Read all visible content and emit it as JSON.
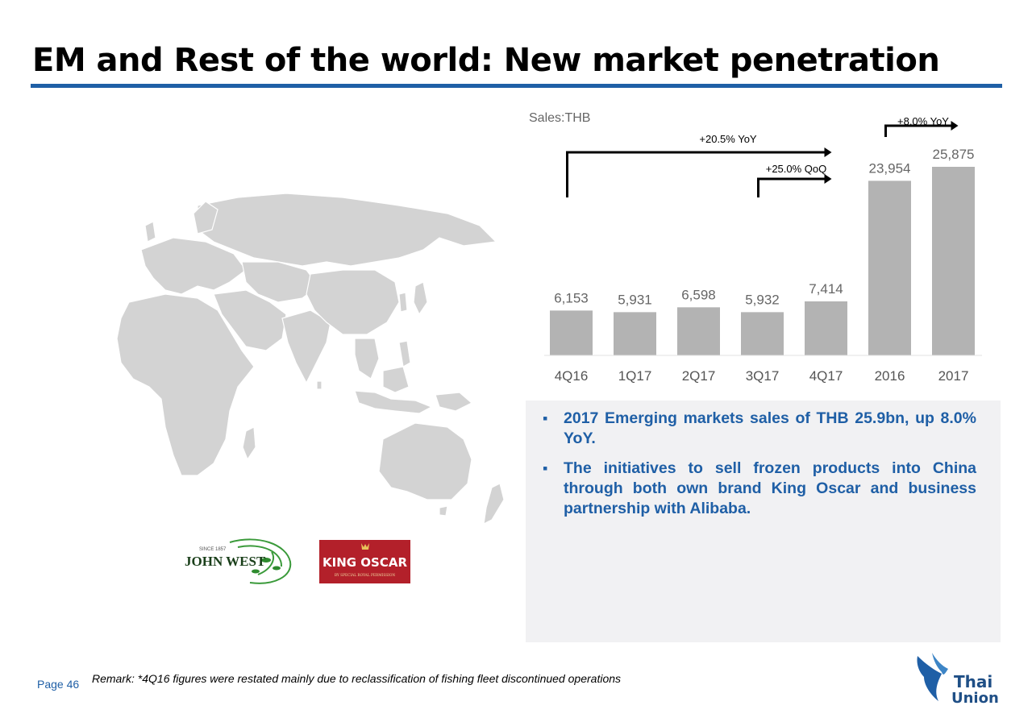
{
  "title": "EM and Rest of the world: New market penetration",
  "colors": {
    "accent": "#1f5fa6",
    "bar": "#b3b3b3",
    "panel": "#f1f1f3",
    "map_land": "#d3d3d3"
  },
  "chart_data": {
    "type": "bar",
    "unit_label": "Sales:THB",
    "categories": [
      "4Q16",
      "1Q17",
      "2Q17",
      "3Q17",
      "4Q17",
      "2016",
      "2017"
    ],
    "values": [
      6153,
      5931,
      6598,
      5932,
      7414,
      23954,
      25875
    ],
    "value_labels": [
      "6,153",
      "5,931",
      "6,598",
      "5,932",
      "7,414",
      "23,954",
      "25,875"
    ],
    "annotations": [
      {
        "text": "+20.5% YoY",
        "from": "4Q16",
        "to": "4Q17"
      },
      {
        "text": "+25.0% QoQ",
        "from": "3Q17",
        "to": "4Q17"
      },
      {
        "text": "+8.0% YoY",
        "from": "2016",
        "to": "2017"
      }
    ]
  },
  "bullets": [
    "2017 Emerging markets sales of THB 25.9bn, up 8.0% YoY.",
    "The initiatives to sell frozen products into China through both own brand King Oscar and business partnership with Alibaba."
  ],
  "logos": {
    "john_west": {
      "tagline": "SINCE 1857",
      "name": "JOHN WEST"
    },
    "king_oscar": {
      "name": "KING OSCAR",
      "subtitle": "BY SPECIAL ROYAL PERMISSION"
    },
    "thai_union": {
      "line1": "Thai",
      "line2": "Union"
    }
  },
  "footer": {
    "page": "Page 46",
    "remark": "Remark: *4Q16 figures were restated mainly due to reclassification of fishing fleet discontinued operations"
  }
}
